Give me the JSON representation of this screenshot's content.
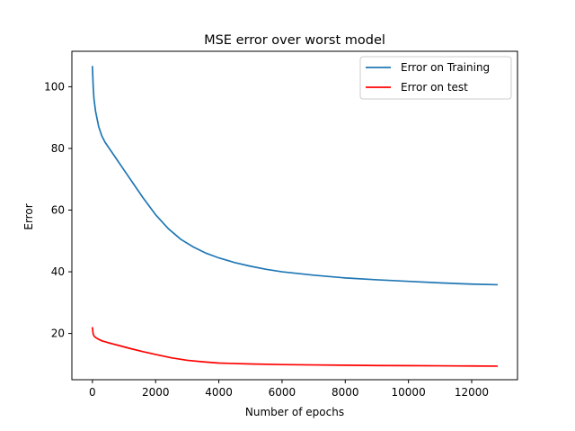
{
  "chart_data": {
    "type": "line",
    "title": "MSE error over worst model",
    "xlabel": "Number of epochs",
    "ylabel": "Error",
    "xlim": [
      -650,
      13450
    ],
    "ylim": [
      5,
      111.5
    ],
    "xticks": [
      0,
      2000,
      4000,
      6000,
      8000,
      10000,
      12000
    ],
    "yticks": [
      20,
      40,
      60,
      80,
      100
    ],
    "grid": false,
    "legend_position": "top-right",
    "series": [
      {
        "name": "Error on Training",
        "color": "#1f77b4",
        "x": [
          0,
          25,
          50,
          100,
          150,
          200,
          300,
          400,
          500,
          700,
          1000,
          1300,
          1600,
          2000,
          2400,
          2800,
          3200,
          3600,
          4000,
          4500,
          5000,
          5500,
          6000,
          7000,
          8000,
          9000,
          10000,
          11000,
          12000,
          12800
        ],
        "y": [
          106.5,
          100,
          96,
          92,
          89.5,
          87,
          84,
          82,
          80.5,
          77.5,
          73,
          68.5,
          64,
          58.5,
          54,
          50.5,
          48,
          46,
          44.5,
          43,
          41.8,
          40.8,
          40,
          38.9,
          38,
          37.4,
          36.9,
          36.4,
          36,
          35.8
        ]
      },
      {
        "name": "Error on test",
        "color": "#ff0000",
        "x": [
          0,
          25,
          50,
          100,
          200,
          300,
          500,
          800,
          1200,
          1600,
          2000,
          2500,
          3000,
          3500,
          4000,
          5000,
          6000,
          7000,
          8000,
          9000,
          10000,
          11000,
          12000,
          12800
        ],
        "y": [
          21.8,
          19.8,
          19.2,
          18.7,
          18.1,
          17.6,
          17,
          16.2,
          15.1,
          14.1,
          13.2,
          12.1,
          11.3,
          10.8,
          10.4,
          10.1,
          9.9,
          9.8,
          9.7,
          9.6,
          9.55,
          9.5,
          9.45,
          9.4
        ]
      }
    ]
  }
}
